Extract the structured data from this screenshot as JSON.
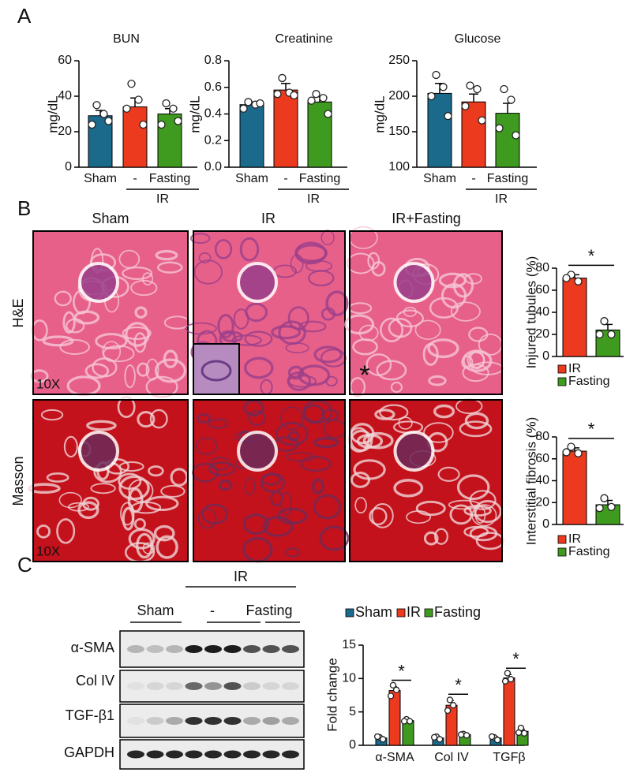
{
  "figure": {
    "panels": [
      "A",
      "B",
      "C"
    ],
    "histology": {
      "columns": [
        "Sham",
        "IR",
        "IR+Fasting"
      ],
      "rows": [
        "H&E",
        "Masson"
      ],
      "magnification": [
        "10X",
        "10X"
      ],
      "marker": "*"
    },
    "blot": {
      "header": "IR",
      "groups": [
        "Sham",
        "-",
        "Fasting"
      ],
      "proteins": [
        "α-SMA",
        "Col IV",
        "TGF-β1",
        "GAPDH"
      ]
    }
  },
  "chart_data": [
    {
      "type": "bar",
      "title": "BUN",
      "ylabel": "mg/dL",
      "categories": [
        "Sham",
        "-",
        "Fasting"
      ],
      "group_label": "IR",
      "values": [
        29,
        34,
        30
      ],
      "errors": [
        3,
        5,
        3
      ],
      "points": [
        [
          35,
          30,
          24,
          26
        ],
        [
          47,
          38,
          33,
          24
        ],
        [
          36,
          33,
          24,
          26
        ]
      ],
      "colors": [
        "#1b6a8c",
        "#ec3a1f",
        "#3f9b1f"
      ],
      "ylim": [
        0,
        60
      ],
      "yticks": [
        0,
        20,
        40,
        60
      ]
    },
    {
      "type": "bar",
      "title": "Creatinine",
      "ylabel": "mg/dL",
      "categories": [
        "Sham",
        "-",
        "Fasting"
      ],
      "group_label": "IR",
      "values": [
        0.47,
        0.58,
        0.49
      ],
      "errors": [
        0.02,
        0.05,
        0.04
      ],
      "points": [
        [
          0.49,
          0.47,
          0.44,
          0.48
        ],
        [
          0.67,
          0.56,
          0.55,
          0.54
        ],
        [
          0.55,
          0.52,
          0.5,
          0.4
        ]
      ],
      "colors": [
        "#1b6a8c",
        "#ec3a1f",
        "#3f9b1f"
      ],
      "ylim": [
        0,
        0.8
      ],
      "yticks": [
        {
          "value": 0,
          "label": "0.0"
        },
        0.2,
        0.4,
        0.6,
        0.8
      ]
    },
    {
      "type": "bar",
      "title": "Glucose",
      "ylabel": "mg/dL",
      "categories": [
        "Sham",
        "-",
        "Fasting"
      ],
      "group_label": "IR",
      "values": [
        204,
        192,
        176
      ],
      "errors": [
        14,
        11,
        14
      ],
      "points": [
        [
          230,
          213,
          200,
          172
        ],
        [
          215,
          210,
          186,
          166
        ],
        [
          210,
          195,
          155,
          145
        ]
      ],
      "colors": [
        "#1b6a8c",
        "#ec3a1f",
        "#3f9b1f"
      ],
      "ylim": [
        100,
        250
      ],
      "yticks": [
        100,
        150,
        200,
        250
      ]
    },
    {
      "type": "bar",
      "ylabel": "Injured tubules (%)",
      "categories": [
        "IR",
        "Fasting"
      ],
      "legend": "bottom",
      "values": [
        71,
        24
      ],
      "errors": [
        3,
        5
      ],
      "points": [
        [
          74,
          68,
          71
        ],
        [
          32,
          20,
          20
        ]
      ],
      "annotations": [
        "*"
      ],
      "colors": [
        "#ec3a1f",
        "#3f9b1f"
      ],
      "ylim": [
        0,
        80
      ],
      "yticks": [
        0,
        20,
        40,
        60,
        80
      ]
    },
    {
      "type": "bar",
      "ylabel": "Interstitial fibrosis (%)",
      "categories": [
        "IR",
        "Fasting"
      ],
      "legend": "bottom",
      "values": [
        67,
        18
      ],
      "errors": [
        3,
        4
      ],
      "points": [
        [
          71,
          65,
          66
        ],
        [
          24,
          16,
          15
        ]
      ],
      "annotations": [
        "*"
      ],
      "colors": [
        "#ec3a1f",
        "#3f9b1f"
      ],
      "ylim": [
        0,
        80
      ],
      "yticks": [
        0,
        20,
        40,
        60,
        80
      ]
    },
    {
      "type": "grouped-bar",
      "ylabel": "Fold change",
      "categories": [
        "α-SMA",
        "Col IV",
        "TGFβ"
      ],
      "legend": "top",
      "series": [
        {
          "name": "Sham",
          "color": "#1b6a8c",
          "values": [
            1.1,
            1.1,
            1.1
          ],
          "errors": [
            0.2,
            0.2,
            0.2
          ],
          "points": [
            [
              1.2,
              0.9,
              1.3
            ],
            [
              1.3,
              0.9,
              1.2
            ],
            [
              1.2,
              0.8,
              1.3
            ]
          ]
        },
        {
          "name": "IR",
          "color": "#ec3a1f",
          "values": [
            8.2,
            6.0,
            10.1
          ],
          "errors": [
            0.6,
            0.7,
            0.5
          ],
          "points": [
            [
              9,
              8.3,
              7.4
            ],
            [
              6.8,
              6,
              5.2
            ],
            [
              10.8,
              9.9,
              9.6
            ]
          ]
        },
        {
          "name": "Fasting",
          "color": "#3f9b1f",
          "values": [
            3.7,
            1.6,
            2.1
          ],
          "errors": [
            0.2,
            0.1,
            0.3
          ],
          "points": [
            [
              3.9,
              3.6,
              3.6
            ],
            [
              1.7,
              1.5,
              1.6
            ],
            [
              2.6,
              1.8,
              1.9
            ]
          ]
        }
      ],
      "annotations": [
        "*",
        "*",
        "*"
      ],
      "ylim": [
        0,
        15
      ],
      "yticks": [
        0,
        5,
        10,
        15
      ]
    }
  ]
}
